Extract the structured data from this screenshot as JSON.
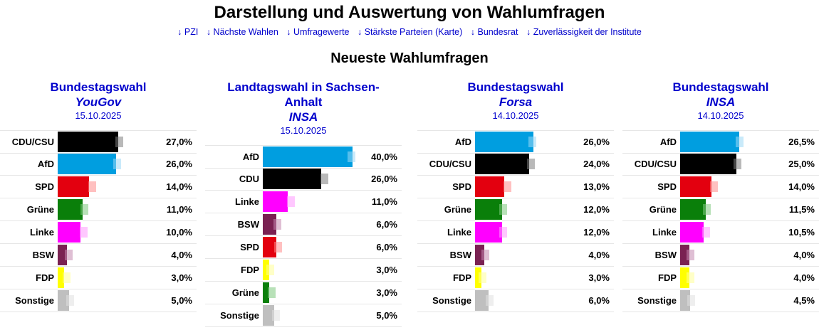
{
  "page": {
    "title": "Darstellung und Auswertung von Wahlumfragen",
    "subtitle": "Neueste Wahlumfragen"
  },
  "nav": [
    "↓ PZI",
    "↓ Nächste Wahlen",
    "↓ Umfragewerte",
    "↓ Stärkste Parteien (Karte)",
    "↓ Bundesrat",
    "↓ Zuverlässigkeit der Institute"
  ],
  "colors": {
    "CDU/CSU": "#000000",
    "CDU": "#000000",
    "AfD": "#009ee0",
    "SPD": "#e3000f",
    "Grüne": "#0a7f0a",
    "Linke": "#ff00ff",
    "BSW": "#7a2152",
    "FDP": "#ffff00",
    "Sonstige": "#bfbfbf"
  },
  "polls": [
    {
      "election_lines": [
        "Bundestagswahl"
      ],
      "institute": "YouGov",
      "date": "15.10.2025",
      "rows": [
        {
          "party": "CDU/CSU",
          "value": 27.0,
          "label": "27,0%",
          "prev": 27.0
        },
        {
          "party": "AfD",
          "value": 26.0,
          "label": "26,0%",
          "prev": 26.0
        },
        {
          "party": "SPD",
          "value": 14.0,
          "label": "14,0%",
          "prev": 15.0
        },
        {
          "party": "Grüne",
          "value": 11.0,
          "label": "11,0%",
          "prev": 11.5
        },
        {
          "party": "Linke",
          "value": 10.0,
          "label": "10,0%",
          "prev": 11.0
        },
        {
          "party": "BSW",
          "value": 4.0,
          "label": "4,0%",
          "prev": 4.5
        },
        {
          "party": "FDP",
          "value": 3.0,
          "label": "3,0%",
          "prev": 3.5
        },
        {
          "party": "Sonstige",
          "value": 5.0,
          "label": "5,0%",
          "prev": 5.0
        }
      ]
    },
    {
      "election_lines": [
        "Landtagswahl in Sachsen-",
        "Anhalt"
      ],
      "institute": "INSA",
      "date": "15.10.2025",
      "rows": [
        {
          "party": "AfD",
          "value": 40.0,
          "label": "40,0%",
          "prev": 39.0
        },
        {
          "party": "CDU",
          "value": 26.0,
          "label": "26,0%",
          "prev": 27.0
        },
        {
          "party": "Linke",
          "value": 11.0,
          "label": "11,0%",
          "prev": 12.0
        },
        {
          "party": "BSW",
          "value": 6.0,
          "label": "6,0%",
          "prev": 6.0
        },
        {
          "party": "SPD",
          "value": 6.0,
          "label": "6,0%",
          "prev": 6.5
        },
        {
          "party": "FDP",
          "value": 3.0,
          "label": "3,0%",
          "prev": 3.0
        },
        {
          "party": "Grüne",
          "value": 3.0,
          "label": "3,0%",
          "prev": 3.5
        },
        {
          "party": "Sonstige",
          "value": 5.0,
          "label": "5,0%",
          "prev": 5.5
        }
      ]
    },
    {
      "election_lines": [
        "Bundestagswahl"
      ],
      "institute": "Forsa",
      "date": "14.10.2025",
      "rows": [
        {
          "party": "AfD",
          "value": 26.0,
          "label": "26,0%",
          "prev": 25.0
        },
        {
          "party": "CDU/CSU",
          "value": 24.0,
          "label": "24,0%",
          "prev": 24.5
        },
        {
          "party": "SPD",
          "value": 13.0,
          "label": "13,0%",
          "prev": 14.0
        },
        {
          "party": "Grüne",
          "value": 12.0,
          "label": "12,0%",
          "prev": 12.0
        },
        {
          "party": "Linke",
          "value": 12.0,
          "label": "12,0%",
          "prev": 12.0
        },
        {
          "party": "BSW",
          "value": 4.0,
          "label": "4,0%",
          "prev": 4.0
        },
        {
          "party": "FDP",
          "value": 3.0,
          "label": "3,0%",
          "prev": 3.0
        },
        {
          "party": "Sonstige",
          "value": 6.0,
          "label": "6,0%",
          "prev": 6.0
        }
      ]
    },
    {
      "election_lines": [
        "Bundestagswahl"
      ],
      "institute": "INSA",
      "date": "14.10.2025",
      "rows": [
        {
          "party": "AfD",
          "value": 26.5,
          "label": "26,5%",
          "prev": 26.0
        },
        {
          "party": "CDU/CSU",
          "value": 25.0,
          "label": "25,0%",
          "prev": 25.0
        },
        {
          "party": "SPD",
          "value": 14.0,
          "label": "14,0%",
          "prev": 14.5
        },
        {
          "party": "Grüne",
          "value": 11.5,
          "label": "11,5%",
          "prev": 11.5
        },
        {
          "party": "Linke",
          "value": 10.5,
          "label": "10,5%",
          "prev": 11.0
        },
        {
          "party": "BSW",
          "value": 4.0,
          "label": "4,0%",
          "prev": 4.0
        },
        {
          "party": "FDP",
          "value": 4.0,
          "label": "4,0%",
          "prev": 4.0
        },
        {
          "party": "Sonstige",
          "value": 4.5,
          "label": "4,5%",
          "prev": 4.5
        }
      ]
    }
  ],
  "chart_data": [
    {
      "type": "bar",
      "title": "Bundestagswahl – YouGov – 15.10.2025",
      "categories": [
        "CDU/CSU",
        "AfD",
        "SPD",
        "Grüne",
        "Linke",
        "BSW",
        "FDP",
        "Sonstige"
      ],
      "values": [
        27.0,
        26.0,
        14.0,
        11.0,
        10.0,
        4.0,
        3.0,
        5.0
      ],
      "ylabel": "%"
    },
    {
      "type": "bar",
      "title": "Landtagswahl in Sachsen-Anhalt – INSA – 15.10.2025",
      "categories": [
        "AfD",
        "CDU",
        "Linke",
        "BSW",
        "SPD",
        "FDP",
        "Grüne",
        "Sonstige"
      ],
      "values": [
        40.0,
        26.0,
        11.0,
        6.0,
        6.0,
        3.0,
        3.0,
        5.0
      ],
      "ylabel": "%"
    },
    {
      "type": "bar",
      "title": "Bundestagswahl – Forsa – 14.10.2025",
      "categories": [
        "AfD",
        "CDU/CSU",
        "SPD",
        "Grüne",
        "Linke",
        "BSW",
        "FDP",
        "Sonstige"
      ],
      "values": [
        26.0,
        24.0,
        13.0,
        12.0,
        12.0,
        4.0,
        3.0,
        6.0
      ],
      "ylabel": "%"
    },
    {
      "type": "bar",
      "title": "Bundestagswahl – INSA – 14.10.2025",
      "categories": [
        "AfD",
        "CDU/CSU",
        "SPD",
        "Grüne",
        "Linke",
        "BSW",
        "FDP",
        "Sonstige"
      ],
      "values": [
        26.5,
        25.0,
        14.0,
        11.5,
        10.5,
        4.0,
        4.0,
        4.5
      ],
      "ylabel": "%"
    }
  ]
}
